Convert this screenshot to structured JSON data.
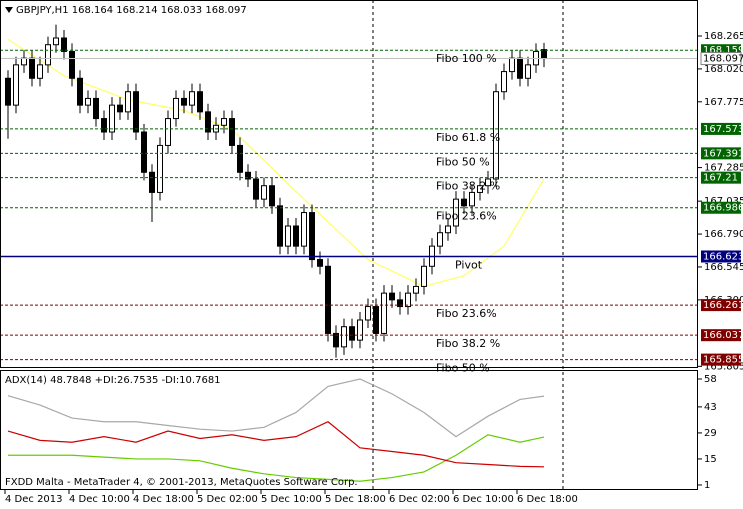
{
  "chart_data": [
    {
      "type": "candlestick",
      "title": "GBPJPY,H1 168.164 168.214 168.033 168.097",
      "open": [
        167.95,
        167.75,
        168.05,
        168.1,
        167.95,
        168.05,
        168.2,
        168.25,
        168.15,
        167.95,
        167.75,
        167.8,
        167.65,
        167.55,
        167.75,
        167.7,
        167.85,
        167.55,
        167.25,
        167.1,
        167.45,
        167.65,
        167.8,
        167.75,
        167.85,
        167.7,
        167.55,
        167.6,
        167.65,
        167.45,
        167.25,
        167.2,
        167.05,
        167.15,
        167.0,
        166.7,
        166.85,
        166.7,
        166.95,
        166.6,
        166.55,
        166.05,
        165.95,
        166.1,
        166.0,
        166.15,
        166.25,
        166.05,
        166.35,
        166.3,
        166.25,
        166.35,
        166.4,
        166.55,
        166.7,
        166.8,
        166.85,
        167.05,
        167.0,
        167.1,
        167.15,
        167.2,
        167.85,
        168.0,
        168.1,
        167.95,
        168.05,
        168.164
      ],
      "high": [
        168.01,
        168.11,
        168.16,
        168.16,
        168.11,
        168.26,
        168.35,
        168.31,
        168.21,
        168.01,
        167.86,
        167.86,
        167.71,
        167.81,
        167.81,
        167.91,
        167.91,
        167.61,
        167.31,
        167.51,
        167.71,
        167.86,
        167.86,
        167.91,
        167.91,
        167.76,
        167.66,
        167.71,
        167.71,
        167.51,
        167.31,
        167.26,
        167.21,
        167.21,
        167.06,
        166.91,
        166.91,
        167.01,
        167.01,
        166.66,
        166.61,
        166.11,
        166.16,
        166.16,
        166.21,
        166.31,
        166.31,
        166.41,
        166.41,
        166.36,
        166.41,
        166.46,
        166.61,
        166.76,
        166.86,
        166.91,
        167.11,
        167.11,
        167.16,
        167.21,
        167.26,
        167.91,
        168.06,
        168.16,
        168.16,
        168.11,
        168.21,
        168.214
      ],
      "low": [
        167.5,
        167.69,
        167.99,
        167.89,
        167.89,
        167.99,
        168.14,
        168.09,
        167.89,
        167.69,
        167.69,
        167.59,
        167.49,
        167.49,
        167.64,
        167.64,
        167.49,
        167.19,
        166.88,
        167.04,
        167.39,
        167.59,
        167.69,
        167.69,
        167.64,
        167.49,
        167.49,
        167.54,
        167.39,
        167.19,
        167.14,
        166.99,
        166.99,
        166.94,
        166.64,
        166.64,
        166.64,
        166.64,
        166.54,
        166.49,
        165.99,
        165.87,
        165.89,
        165.94,
        165.94,
        166.09,
        165.99,
        165.99,
        166.24,
        166.19,
        166.19,
        166.29,
        166.34,
        166.49,
        166.64,
        166.74,
        166.79,
        166.94,
        166.94,
        167.04,
        167.09,
        167.14,
        167.79,
        167.94,
        167.89,
        167.89,
        167.99,
        168.033
      ],
      "close": [
        167.75,
        168.05,
        168.1,
        167.95,
        168.05,
        168.2,
        168.25,
        168.15,
        167.95,
        167.75,
        167.8,
        167.65,
        167.55,
        167.75,
        167.7,
        167.85,
        167.55,
        167.25,
        167.1,
        167.45,
        167.65,
        167.8,
        167.75,
        167.85,
        167.7,
        167.55,
        167.6,
        167.65,
        167.45,
        167.25,
        167.2,
        167.05,
        167.15,
        167.0,
        166.7,
        166.85,
        166.7,
        166.95,
        166.6,
        166.55,
        166.05,
        165.95,
        166.1,
        166.0,
        166.15,
        166.25,
        166.05,
        166.35,
        166.3,
        166.25,
        166.35,
        166.4,
        166.55,
        166.7,
        166.8,
        166.85,
        167.05,
        167.0,
        167.1,
        167.15,
        167.2,
        167.85,
        168.0,
        168.1,
        167.95,
        168.05,
        168.15,
        168.097
      ],
      "bull_color": "#ffffff",
      "bear_color": "#000000",
      "ylim": [
        165.8,
        168.533
      ],
      "yticks": [
        168.265,
        {
          "value": 168.02,
          "label": "168.020"
        },
        167.775,
        167.285,
        167.035,
        {
          "value": 166.79,
          "label": "166.790"
        },
        166.545,
        {
          "value": 166.3,
          "label": "166.300"
        },
        165.805
      ],
      "xticks": [
        {
          "value": 0,
          "label": "4 Dec 2013"
        },
        {
          "value": 8,
          "label": "4 Dec 10:00"
        },
        {
          "value": 16,
          "label": "4 Dec 18:00"
        },
        {
          "value": 24,
          "label": "5 Dec 02:00"
        },
        {
          "value": 32,
          "label": "5 Dec 10:00"
        },
        {
          "value": 40,
          "label": "5 Dec 18:00"
        },
        {
          "value": 48,
          "label": "6 Dec 02:00"
        },
        {
          "value": 56,
          "label": "6 Dec 10:00"
        },
        {
          "value": 64,
          "label": "6 Dec 18:00"
        }
      ],
      "ma": {
        "x": [
          0,
          7,
          15,
          22,
          28,
          37,
          45,
          52,
          57,
          62,
          67
        ],
        "values": [
          168.24,
          167.97,
          167.79,
          167.71,
          167.57,
          167.05,
          166.6,
          166.4,
          166.48,
          166.7,
          167.2
        ],
        "color": "#ffff66"
      },
      "levels": [
        {
          "value": 168.159,
          "label": "Fibo 100 %",
          "color": "#006400"
        },
        {
          "value": 167.573,
          "label": "Fibo 61.8 %",
          "color": "#006400"
        },
        {
          "value": 167.391,
          "label": "Fibo 50 %",
          "color": "#006400"
        },
        {
          "value": 167.21,
          "label": "Fibo 38.2 %",
          "color": "#006400"
        },
        {
          "value": 166.986,
          "label": "Fibo 23.6%",
          "color": "#006400"
        },
        {
          "value": 166.623,
          "label": "Pivot",
          "color": "#000080"
        },
        {
          "value": 166.261,
          "label": "Fibo 23.6%",
          "color": "#800000"
        },
        {
          "value": 166.037,
          "label": "Fibo 38.2 %",
          "color": "#800000"
        },
        {
          "value": 165.855,
          "label": "Fibo 50 %",
          "color": "#800000"
        }
      ],
      "current_price": 168.097
    },
    {
      "type": "line",
      "title": "ADX(14) 48.7848 +DI:26.7535 -DI:10.7681",
      "x": [
        0,
        4,
        8,
        12,
        16,
        20,
        24,
        28,
        32,
        36,
        40,
        44,
        48,
        52,
        56,
        60,
        64,
        67
      ],
      "series": [
        {
          "color": "#a8a8a8",
          "values": [
            49,
            44,
            37,
            35,
            35,
            33,
            31,
            30,
            32,
            40,
            54,
            58,
            50,
            40,
            27,
            38,
            47,
            48.7848
          ]
        },
        {
          "color": "#66cc00",
          "values": [
            17,
            17,
            17,
            16,
            15,
            15,
            14,
            10,
            7,
            5,
            4,
            3,
            5,
            8,
            17,
            28,
            24,
            26.7535
          ]
        },
        {
          "color": "#cc0000",
          "values": [
            30,
            25,
            24,
            27,
            24,
            30,
            26,
            28,
            25,
            27,
            35,
            21,
            19,
            17,
            13,
            12,
            11,
            10.7681
          ]
        }
      ],
      "ylim": [
        -1.7,
        62.3
      ],
      "yticks": [
        58,
        43,
        29,
        15,
        1
      ]
    }
  ],
  "footer": "FXDD Malta - MetaTrader 4, © 2001-2013, MetaQuotes Software Corp."
}
